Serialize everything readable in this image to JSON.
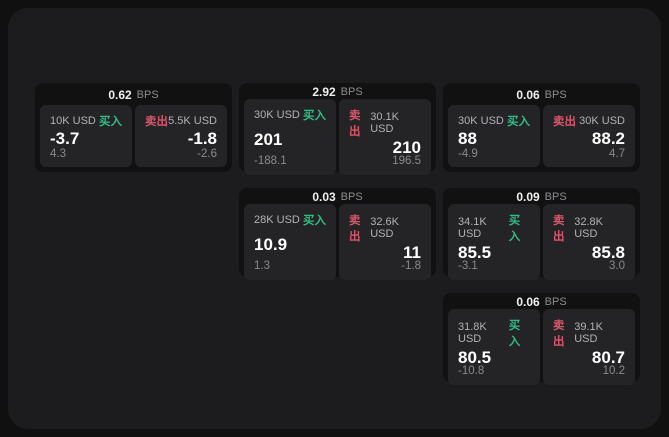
{
  "labels": {
    "bps_unit": "BPS",
    "buy_tag": "买入",
    "sell_tag": "卖出"
  },
  "colors": {
    "buy-color": "#2ebd85",
    "sell-color": "#d9566b",
    "window-bg": "#1c1c1e",
    "card-bg": "#111112",
    "cell-bg": "#242427"
  },
  "cards": [
    {
      "bps": "0.62",
      "buy": {
        "amount": "10K USD",
        "price": "-3.7",
        "sub": "4.3"
      },
      "sell": {
        "amount": "5.5K USD",
        "price": "-1.8",
        "sub": "-2.6"
      }
    },
    {
      "bps": "2.92",
      "buy": {
        "amount": "30K USD",
        "price": "201",
        "sub": "-188.1"
      },
      "sell": {
        "amount": "30.1K USD",
        "price": "210",
        "sub": "196.5"
      }
    },
    {
      "bps": "0.06",
      "buy": {
        "amount": "30K USD",
        "price": "88",
        "sub": "-4.9"
      },
      "sell": {
        "amount": "30K USD",
        "price": "88.2",
        "sub": "4.7"
      }
    },
    {
      "bps": "0.03",
      "buy": {
        "amount": "28K USD",
        "price": "10.9",
        "sub": "1.3"
      },
      "sell": {
        "amount": "32.6K USD",
        "price": "11",
        "sub": "-1.8"
      }
    },
    {
      "bps": "0.09",
      "buy": {
        "amount": "34.1K USD",
        "price": "85.5",
        "sub": "-3.1"
      },
      "sell": {
        "amount": "32.8K USD",
        "price": "85.8",
        "sub": "3.0"
      }
    },
    {
      "bps": "0.06",
      "buy": {
        "amount": "31.8K USD",
        "price": "80.5",
        "sub": "-10.8"
      },
      "sell": {
        "amount": "39.1K USD",
        "price": "80.7",
        "sub": "10.2"
      }
    }
  ]
}
